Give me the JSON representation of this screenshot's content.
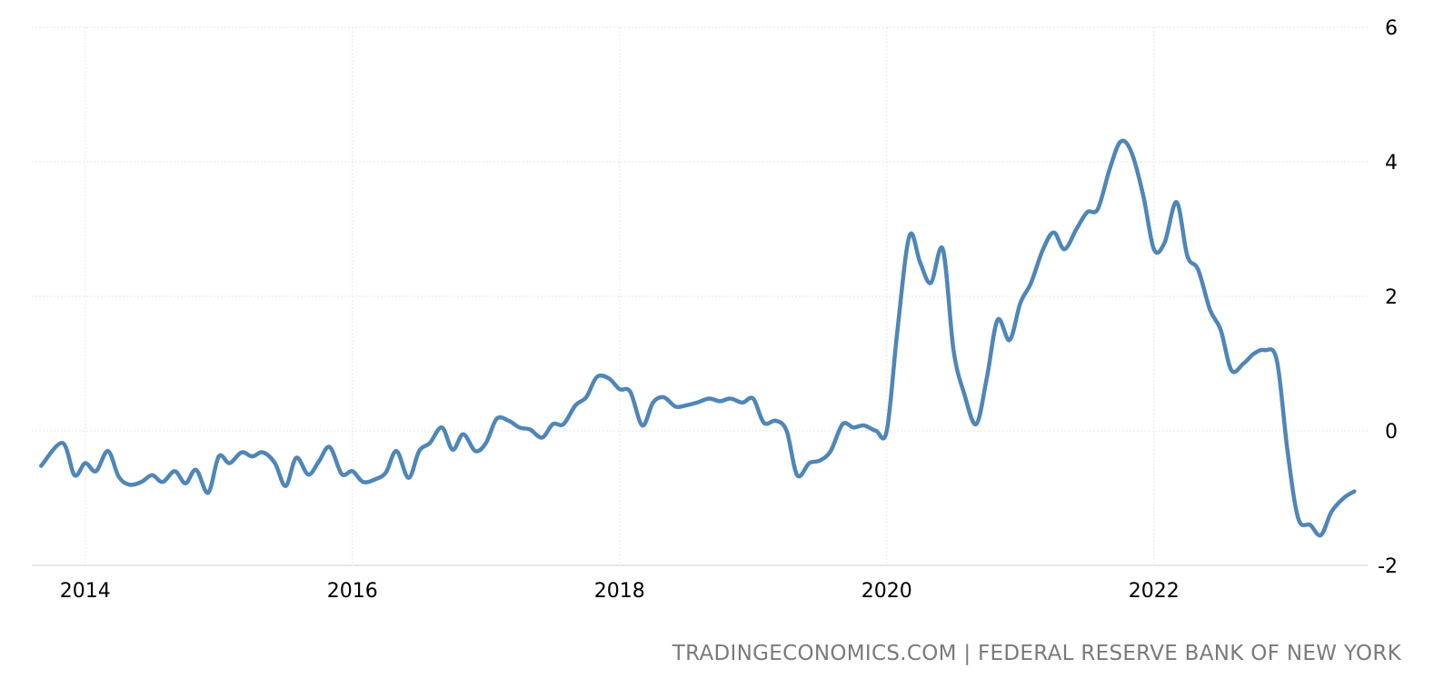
{
  "chart_data": {
    "type": "line",
    "title": "",
    "xlabel": "",
    "ylabel": "",
    "xlim": [
      2013.6,
      2023.6
    ],
    "ylim": [
      -2,
      6
    ],
    "grid": true,
    "legend": "none",
    "x_ticks": [
      {
        "value": 2014,
        "label": "2014"
      },
      {
        "value": 2016,
        "label": "2016"
      },
      {
        "value": 2018,
        "label": "2018"
      },
      {
        "value": 2020,
        "label": "2020"
      },
      {
        "value": 2022,
        "label": "2022"
      }
    ],
    "y_ticks": [
      {
        "value": 6,
        "label": "6"
      },
      {
        "value": 4,
        "label": "4"
      },
      {
        "value": 2,
        "label": "2"
      },
      {
        "value": 0,
        "label": "0"
      },
      {
        "value": -2,
        "label": "-2"
      }
    ],
    "line_color": "#4f86b8",
    "series": [
      {
        "x": [
          2013.67,
          2013.83,
          2013.92,
          2014.0,
          2014.08,
          2014.17,
          2014.25,
          2014.33,
          2014.42,
          2014.5,
          2014.58,
          2014.67,
          2014.75,
          2014.83,
          2014.92,
          2015.0,
          2015.08,
          2015.17,
          2015.25,
          2015.33,
          2015.42,
          2015.5,
          2015.58,
          2015.67,
          2015.75,
          2015.83,
          2015.92,
          2016.0,
          2016.08,
          2016.17,
          2016.25,
          2016.33,
          2016.42,
          2016.5,
          2016.58,
          2016.67,
          2016.75,
          2016.83,
          2016.92,
          2017.0,
          2017.08,
          2017.17,
          2017.25,
          2017.33,
          2017.42,
          2017.5,
          2017.58,
          2017.67,
          2017.75,
          2017.83,
          2017.92,
          2018.0,
          2018.08,
          2018.17,
          2018.25,
          2018.33,
          2018.42,
          2018.5,
          2018.58,
          2018.67,
          2018.75,
          2018.83,
          2018.92,
          2019.0,
          2019.08,
          2019.17,
          2019.25,
          2019.33,
          2019.42,
          2019.5,
          2019.58,
          2019.67,
          2019.75,
          2019.83,
          2019.92,
          2020.0,
          2020.08,
          2020.17,
          2020.25,
          2020.33,
          2020.42,
          2020.5,
          2020.58,
          2020.67,
          2020.75,
          2020.83,
          2020.92,
          2021.0,
          2021.08,
          2021.17,
          2021.25,
          2021.33,
          2021.42,
          2021.5,
          2021.58,
          2021.67,
          2021.75,
          2021.83,
          2021.92,
          2022.0,
          2022.08,
          2022.17,
          2022.25,
          2022.33,
          2022.42,
          2022.5,
          2022.58,
          2022.67,
          2022.75,
          2022.83,
          2022.92,
          2023.0,
          2023.08,
          2023.17,
          2023.25,
          2023.33,
          2023.42,
          2023.5
        ],
        "y": [
          -0.52,
          -0.18,
          -0.66,
          -0.48,
          -0.6,
          -0.3,
          -0.68,
          -0.8,
          -0.76,
          -0.66,
          -0.76,
          -0.6,
          -0.78,
          -0.58,
          -0.92,
          -0.38,
          -0.48,
          -0.32,
          -0.38,
          -0.32,
          -0.48,
          -0.82,
          -0.4,
          -0.65,
          -0.45,
          -0.24,
          -0.64,
          -0.6,
          -0.76,
          -0.72,
          -0.62,
          -0.3,
          -0.7,
          -0.3,
          -0.18,
          0.05,
          -0.28,
          -0.05,
          -0.3,
          -0.18,
          0.18,
          0.15,
          0.05,
          0.02,
          -0.1,
          0.1,
          0.1,
          0.38,
          0.5,
          0.8,
          0.78,
          0.62,
          0.58,
          0.08,
          0.42,
          0.5,
          0.36,
          0.38,
          0.42,
          0.48,
          0.44,
          0.48,
          0.42,
          0.48,
          0.12,
          0.15,
          0.0,
          -0.66,
          -0.48,
          -0.44,
          -0.3,
          0.1,
          0.05,
          0.08,
          0.0,
          0.0,
          1.5,
          2.9,
          2.5,
          2.2,
          2.7,
          1.2,
          0.55,
          0.1,
          0.8,
          1.65,
          1.35,
          1.9,
          2.2,
          2.7,
          2.95,
          2.7,
          3.0,
          3.25,
          3.3,
          3.9,
          4.3,
          4.15,
          3.5,
          2.7,
          2.8,
          3.4,
          2.6,
          2.4,
          1.8,
          1.5,
          0.9,
          1.0,
          1.15,
          1.2,
          1.05,
          -0.3,
          -1.3,
          -1.4,
          -1.55,
          -1.2,
          -1.0,
          -0.9
        ]
      }
    ]
  },
  "source": {
    "text": "TRADINGECONOMICS.COM | FEDERAL RESERVE BANK OF NEW YORK"
  }
}
